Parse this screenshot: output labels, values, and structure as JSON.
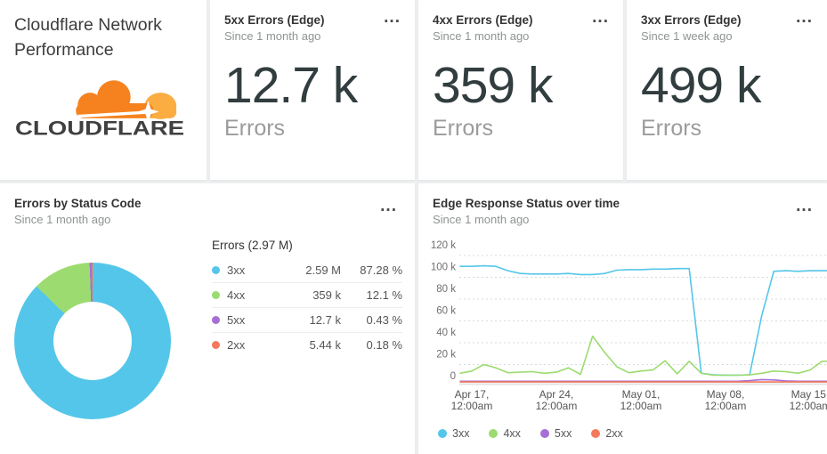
{
  "header_card": {
    "title_line1": "Cloudflare Network",
    "title_line2": "Performance",
    "logo_text": "CLOUDFLARE",
    "logo_colors": {
      "cloud_orange": "#F6821F",
      "cloud_light_orange": "#FBAD41",
      "wordmark": "#404041"
    }
  },
  "icons": {
    "menu": "..."
  },
  "metric_cards": [
    {
      "title": "5xx Errors (Edge)",
      "subtitle": "Since 1 month ago",
      "value": "12.7 k",
      "unit_label": "Errors"
    },
    {
      "title": "4xx Errors (Edge)",
      "subtitle": "Since 1 month ago",
      "value": "359 k",
      "unit_label": "Errors"
    },
    {
      "title": "3xx Errors (Edge)",
      "subtitle": "Since 1 week ago",
      "value": "499 k",
      "unit_label": "Errors"
    }
  ],
  "colors": {
    "status_3xx": "#54c6e9",
    "status_4xx": "#9cdb70",
    "status_5xx": "#a66fd5",
    "status_2xx": "#f4795c",
    "big_number": "#313d3f",
    "grid_dotted": "#d7dbdb",
    "axis_line": "#e2e4e4"
  },
  "chart_data": [
    {
      "type": "pie",
      "donut": true,
      "title": "Errors by Status Code",
      "subtitle": "Since 1 month ago",
      "total_label": "Errors (2.97 M)",
      "labels": [
        "3xx",
        "4xx",
        "5xx",
        "2xx"
      ],
      "value_labels": [
        "2.59 M",
        "359 k",
        "12.7 k",
        "5.44 k"
      ],
      "percents": [
        87.28,
        12.1,
        0.43,
        0.18
      ],
      "percent_labels": [
        "87.28 %",
        "12.1 %",
        "0.43 %",
        "0.18 %"
      ],
      "colors": [
        "#54c6e9",
        "#9cdb70",
        "#a66fd5",
        "#f4795c"
      ],
      "legend_position": "right"
    },
    {
      "type": "line",
      "title": "Edge Response Status over time",
      "subtitle": "Since 1 month ago",
      "unit": "k errors per day",
      "ylim": [
        -5,
        123
      ],
      "grid": "dotted-horizontal",
      "grid_values": [
        110,
        90,
        70,
        50,
        30,
        10
      ],
      "yticks": [
        {
          "label": "120 k",
          "value": 120
        },
        {
          "label": "100 k",
          "value": 100
        },
        {
          "label": "80 k",
          "value": 80
        },
        {
          "label": "60 k",
          "value": 60
        },
        {
          "label": "40 k",
          "value": 40
        },
        {
          "label": "20 k",
          "value": 20
        },
        {
          "label": "0",
          "value": 0
        }
      ],
      "x_unit": "days (Apr 16 - May 16)",
      "xticks": [
        {
          "day": 1,
          "line1": "Apr 17,",
          "line2": "12:00am"
        },
        {
          "day": 8,
          "line1": "Apr 24,",
          "line2": "12:00am"
        },
        {
          "day": 15,
          "line1": "May 01,",
          "line2": "12:00am"
        },
        {
          "day": 22,
          "line1": "May 08,",
          "line2": "12:00am"
        },
        {
          "day": 29,
          "line1": "May 15,",
          "line2": "12:00am"
        }
      ],
      "legend_position": "bottom",
      "series": [
        {
          "name": "3xx",
          "color": "#54c6e9",
          "values": [
            100,
            100,
            100.5,
            100,
            96,
            93.5,
            93,
            93,
            93,
            93.5,
            92.5,
            92.5,
            93.5,
            96.5,
            97,
            97,
            97.5,
            97.5,
            98,
            98,
            2,
            0.5,
            0.3,
            0.3,
            0.5,
            55,
            95.5,
            96,
            95.5,
            96,
            96
          ]
        },
        {
          "name": "4xx",
          "color": "#9cdb70",
          "values": [
            2,
            4,
            10,
            7,
            2.5,
            3,
            3.5,
            2,
            3,
            7,
            1,
            36,
            21,
            8,
            2.5,
            4,
            5,
            13.5,
            1.5,
            13,
            2,
            0.3,
            0.2,
            0.2,
            0.5,
            2,
            4,
            3.5,
            2,
            5,
            13
          ]
        },
        {
          "name": "5xx",
          "color": "#a66fd5",
          "values": [
            0,
            0,
            0,
            0,
            0,
            0,
            0,
            0,
            0,
            0,
            0,
            0,
            0,
            0,
            0,
            0,
            0,
            0,
            0,
            0,
            0,
            0,
            0,
            0,
            0.5,
            1.5,
            1.2,
            0.3,
            0,
            0,
            0
          ]
        },
        {
          "name": "2xx",
          "color": "#f4795c",
          "values": [
            0,
            0,
            0,
            0,
            0,
            0,
            0,
            0,
            0,
            0,
            0,
            0,
            0,
            0,
            0,
            0,
            0,
            0,
            0,
            0,
            0,
            0,
            0,
            0,
            0,
            0,
            0,
            0,
            0,
            0,
            0
          ]
        }
      ]
    }
  ]
}
